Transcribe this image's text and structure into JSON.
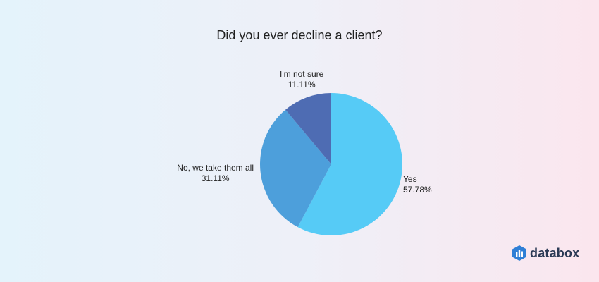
{
  "chart_data": {
    "type": "pie",
    "title": "Did you ever decline a client?",
    "slices": [
      {
        "label": "Yes",
        "value": 57.78,
        "display": "57.78%",
        "color": "#56cbf6"
      },
      {
        "label": "No, we take them all",
        "value": 31.11,
        "display": "31.11%",
        "color": "#4d9fdb"
      },
      {
        "label": "I'm not sure",
        "value": 11.11,
        "display": "11.11%",
        "color": "#4e6cb3"
      }
    ]
  },
  "brand": {
    "name": "databox",
    "color": "#2b3a55"
  }
}
